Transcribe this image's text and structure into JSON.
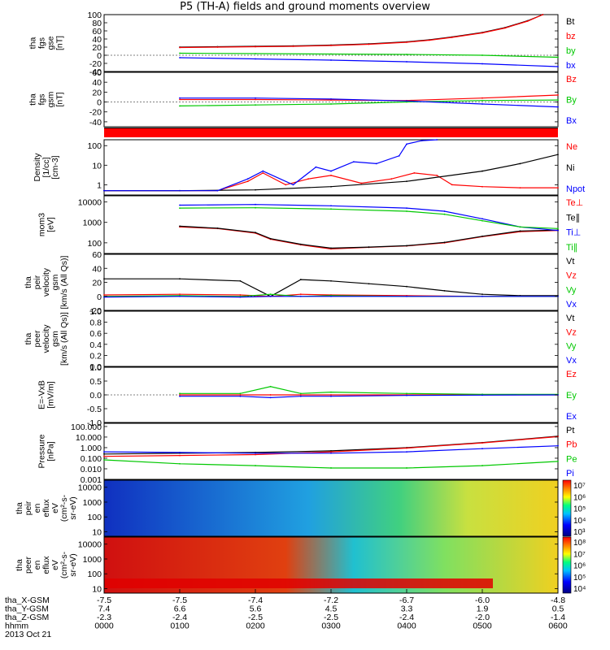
{
  "title": "P5 (TH-A) fields and ground moments overview",
  "x_ticks": [
    "0000",
    "0100",
    "0200",
    "0300",
    "0400",
    "0500",
    "0600"
  ],
  "time_rows": [
    {
      "label": "tha_X-GSM",
      "values": [
        "-7.5",
        "-7.5",
        "-7.4",
        "-7.2",
        "-6.7",
        "-6.0",
        "-4.8"
      ]
    },
    {
      "label": "tha_Y-GSM",
      "values": [
        "7.4",
        "6.6",
        "5.6",
        "4.5",
        "3.3",
        "1.9",
        "0.5"
      ]
    },
    {
      "label": "tha_Z-GSM",
      "values": [
        "-2.3",
        "-2.4",
        "-2.5",
        "-2.5",
        "-2.4",
        "-2.0",
        "-1.4"
      ]
    },
    {
      "label": "hhmm",
      "values": [
        "0000",
        "0100",
        "0200",
        "0300",
        "0400",
        "0500",
        "0600"
      ]
    }
  ],
  "date_label": "2013 Oct 21",
  "colors": {
    "black": "#000000",
    "red": "#ff0000",
    "green": "#00c800",
    "blue": "#0000ff"
  },
  "chart_data": [
    {
      "type": "line",
      "id": "fgs_gse",
      "ylabel": [
        "tha",
        "fgs",
        "gse",
        "[nT]"
      ],
      "ylim": [
        -40,
        100
      ],
      "yticks": [
        "-40",
        "-20",
        "0",
        "20",
        "40",
        "60",
        "80",
        "100"
      ],
      "legend": [
        {
          "name": "Bt",
          "color": "#000000"
        },
        {
          "name": "bz",
          "color": "#ff0000"
        },
        {
          "name": "by",
          "color": "#00c800"
        },
        {
          "name": "bx",
          "color": "#0000ff"
        }
      ],
      "series": [
        {
          "name": "Bt",
          "color": "#000000",
          "x": [
            1.0,
            1.5,
            2.0,
            2.5,
            3.0,
            3.5,
            4.0,
            4.3,
            4.6,
            5.0,
            5.3,
            5.6,
            5.8
          ],
          "y": [
            20,
            21,
            22,
            23,
            25,
            28,
            33,
            38,
            45,
            56,
            68,
            85,
            100
          ]
        },
        {
          "name": "bz",
          "color": "#ff0000",
          "x": [
            1.0,
            1.5,
            2.0,
            2.5,
            3.0,
            3.5,
            4.0,
            4.3,
            4.6,
            5.0,
            5.3,
            5.6,
            5.8
          ],
          "y": [
            19,
            20,
            21,
            22,
            24,
            27,
            32,
            37,
            44,
            55,
            67,
            84,
            100
          ]
        },
        {
          "name": "by",
          "color": "#00c800",
          "x": [
            1.0,
            2.0,
            3.0,
            4.0,
            5.0,
            6.0
          ],
          "y": [
            5,
            4,
            3,
            2,
            0,
            -5
          ]
        },
        {
          "name": "bx",
          "color": "#0000ff",
          "x": [
            1.0,
            2.0,
            3.0,
            4.0,
            5.0,
            6.0
          ],
          "y": [
            -6,
            -9,
            -12,
            -16,
            -21,
            -28
          ]
        }
      ]
    },
    {
      "type": "line",
      "id": "fgs_gsm",
      "ylabel": [
        "tha",
        "fgs",
        "gsm",
        "[nT]"
      ],
      "ylim": [
        -50,
        60
      ],
      "yticks": [
        "-40",
        "-20",
        "0",
        "20",
        "40",
        "60"
      ],
      "legend": [
        {
          "name": "Bz",
          "color": "#ff0000"
        },
        {
          "name": "By",
          "color": "#00c800"
        },
        {
          "name": "Bx",
          "color": "#0000ff"
        }
      ],
      "series": [
        {
          "name": "Bz",
          "color": "#ff0000",
          "x": [
            1.0,
            2.0,
            3.0,
            4.0,
            5.0,
            6.0
          ],
          "y": [
            5,
            5,
            4,
            3,
            8,
            14
          ]
        },
        {
          "name": "By",
          "color": "#00c800",
          "x": [
            1.0,
            2.0,
            3.0,
            4.0,
            5.0,
            6.0
          ],
          "y": [
            -8,
            -6,
            -4,
            0,
            3,
            4
          ]
        },
        {
          "name": "Bx",
          "color": "#0000ff",
          "x": [
            1.0,
            2.0,
            3.0,
            4.0,
            5.0,
            6.0
          ],
          "y": [
            8,
            8,
            6,
            2,
            -4,
            -10
          ]
        }
      ]
    },
    {
      "type": "line",
      "id": "density",
      "ylabel": [
        "Density",
        "[1/cc]",
        "[cm-3]"
      ],
      "ylim": [
        0.3,
        200
      ],
      "log": true,
      "yticks": [
        "1",
        "10",
        "100"
      ],
      "legend": [
        {
          "name": "Ne",
          "color": "#ff0000"
        },
        {
          "name": "Ni",
          "color": "#000000"
        },
        {
          "name": "Npot",
          "color": "#0000ff"
        }
      ],
      "series": [
        {
          "name": "Ne",
          "color": "#ff0000",
          "x": [
            0,
            1.5,
            1.9,
            2.1,
            2.4,
            2.7,
            3.0,
            3.4,
            3.8,
            4.1,
            4.4,
            4.6,
            5.0,
            5.5,
            6.0
          ],
          "y": [
            0.5,
            0.5,
            1.5,
            4,
            1,
            2,
            3,
            1.2,
            2,
            4,
            3,
            1,
            0.8,
            0.7,
            0.7
          ]
        },
        {
          "name": "Ni",
          "color": "#000000",
          "x": [
            0,
            1,
            2,
            3,
            4,
            5,
            5.5,
            6.0
          ],
          "y": [
            0.5,
            0.5,
            0.55,
            0.8,
            1.5,
            5,
            12,
            35
          ]
        },
        {
          "name": "Npot",
          "color": "#0000ff",
          "x": [
            0,
            1.5,
            1.9,
            2.1,
            2.5,
            2.8,
            3.0,
            3.3,
            3.6,
            3.9,
            4.0,
            4.2,
            4.4
          ],
          "y": [
            0.5,
            0.5,
            2,
            5,
            1,
            8,
            5,
            15,
            12,
            30,
            120,
            180,
            200
          ]
        }
      ]
    },
    {
      "type": "line",
      "id": "moms",
      "ylabel": [
        "mom3",
        "[eV]"
      ],
      "ylim": [
        30,
        20000
      ],
      "log": true,
      "yticks": [
        "100",
        "1000",
        "10000"
      ],
      "legend": [
        {
          "name": "Te⊥",
          "color": "#ff0000"
        },
        {
          "name": "Te∥",
          "color": "#000000"
        },
        {
          "name": "Ti⊥",
          "color": "#0000ff"
        },
        {
          "name": "Ti∥",
          "color": "#00c800"
        }
      ],
      "series": [
        {
          "name": "Te⊥",
          "color": "#ff0000",
          "x": [
            1.0,
            1.5,
            2.0,
            2.2,
            2.6,
            3.0,
            3.5,
            4.0,
            4.5,
            5.0,
            5.5,
            6.0
          ],
          "y": [
            600,
            500,
            300,
            150,
            80,
            50,
            60,
            70,
            100,
            200,
            350,
            400
          ]
        },
        {
          "name": "Te∥",
          "color": "#000000",
          "x": [
            1.0,
            1.5,
            2.0,
            2.2,
            2.6,
            3.0,
            3.5,
            4.0,
            4.5,
            5.0,
            5.5,
            6.0
          ],
          "y": [
            650,
            520,
            320,
            160,
            85,
            55,
            62,
            72,
            105,
            210,
            380,
            420
          ]
        },
        {
          "name": "Ti⊥",
          "color": "#0000ff",
          "x": [
            1.0,
            2.0,
            3.0,
            4.0,
            4.5,
            5.0,
            5.5,
            6.0
          ],
          "y": [
            7000,
            7500,
            6500,
            5000,
            3500,
            1500,
            600,
            400
          ]
        },
        {
          "name": "Ti∥",
          "color": "#00c800",
          "x": [
            1.0,
            2.0,
            3.0,
            4.0,
            4.5,
            5.0,
            5.5,
            6.0
          ],
          "y": [
            5000,
            5200,
            4500,
            3500,
            2500,
            1200,
            600,
            500
          ]
        }
      ]
    },
    {
      "type": "line",
      "id": "peir_v",
      "ylabel": [
        "tha",
        "peir",
        "velocity",
        "gsm",
        "[km/s (All Qs)]"
      ],
      "ylim": [
        -20,
        60
      ],
      "yticks": [
        "-20",
        "0",
        "20",
        "40",
        "60"
      ],
      "legend": [
        {
          "name": "Vt",
          "color": "#000000"
        },
        {
          "name": "Vz",
          "color": "#ff0000"
        },
        {
          "name": "Vy",
          "color": "#00c800"
        },
        {
          "name": "Vx",
          "color": "#0000ff"
        }
      ],
      "series": [
        {
          "name": "Vt",
          "color": "#000000",
          "x": [
            0,
            1.0,
            1.8,
            2.2,
            2.6,
            3.0,
            3.5,
            4.0,
            4.5,
            5.0,
            5.5,
            6.0
          ],
          "y": [
            25,
            25,
            22,
            0,
            24,
            22,
            18,
            14,
            8,
            3,
            1,
            1
          ]
        },
        {
          "name": "Vz",
          "color": "#ff0000",
          "x": [
            0,
            1.0,
            1.8,
            2.2,
            2.6,
            3.0,
            4.0,
            5.0,
            6.0
          ],
          "y": [
            2,
            3,
            2,
            0,
            3,
            2,
            1,
            0,
            0
          ]
        },
        {
          "name": "Vy",
          "color": "#00c800",
          "x": [
            0,
            1.0,
            1.8,
            2.2,
            2.6,
            3.0,
            4.0,
            5.0,
            6.0
          ],
          "y": [
            0,
            1,
            0,
            3,
            0,
            1,
            0,
            0,
            0
          ]
        },
        {
          "name": "Vx",
          "color": "#0000ff",
          "x": [
            0,
            1.0,
            1.8,
            2.2,
            2.6,
            3.0,
            4.0,
            5.0,
            6.0
          ],
          "y": [
            -1,
            0,
            -1,
            0,
            0,
            0,
            0,
            0,
            0
          ]
        }
      ]
    },
    {
      "type": "line",
      "id": "peer_v",
      "ylabel": [
        "tha",
        "peer",
        "velocity",
        "gsm",
        "[km/s (All Qs)]"
      ],
      "ylim": [
        0,
        1
      ],
      "yticks": [
        "0.0",
        "0.2",
        "0.4",
        "0.6",
        "0.8",
        "1.0"
      ],
      "legend": [
        {
          "name": "Vt",
          "color": "#000000"
        },
        {
          "name": "Vz",
          "color": "#ff0000"
        },
        {
          "name": "Vy",
          "color": "#00c800"
        },
        {
          "name": "Vx",
          "color": "#0000ff"
        }
      ],
      "series": []
    },
    {
      "type": "line",
      "id": "efield",
      "ylabel": [
        "E=-VxB",
        "[mV/m]"
      ],
      "ylim": [
        -1,
        1
      ],
      "yticks": [
        "-1.0",
        "-0.5",
        "0.0",
        "0.5",
        "1.0"
      ],
      "legend": [
        {
          "name": "Ez",
          "color": "#ff0000"
        },
        {
          "name": "Ey",
          "color": "#00c800"
        },
        {
          "name": "Ex",
          "color": "#0000ff"
        }
      ],
      "series": [
        {
          "name": "Ez",
          "color": "#ff0000",
          "x": [
            1.0,
            1.8,
            2.2,
            2.6,
            3.0,
            4.0,
            5.0,
            6.0
          ],
          "y": [
            0,
            0,
            0,
            0,
            0,
            0,
            0,
            0
          ]
        },
        {
          "name": "Ey",
          "color": "#00c800",
          "x": [
            1.0,
            1.8,
            2.2,
            2.6,
            3.0,
            4.0,
            5.0,
            6.0
          ],
          "y": [
            0.05,
            0.05,
            0.3,
            0.05,
            0.1,
            0.05,
            0.02,
            0.02
          ]
        },
        {
          "name": "Ex",
          "color": "#0000ff",
          "x": [
            1.0,
            1.8,
            2.2,
            2.6,
            3.0,
            4.0,
            5.0,
            6.0
          ],
          "y": [
            -0.05,
            -0.05,
            -0.1,
            -0.05,
            -0.05,
            -0.02,
            -0.01,
            0
          ]
        }
      ]
    },
    {
      "type": "line",
      "id": "pressure",
      "ylabel": [
        "Pressure",
        "[nPa]"
      ],
      "ylim": [
        0.001,
        200
      ],
      "log": true,
      "yticks": [
        "0.001",
        "0.010",
        "0.100",
        "1.000",
        "10.000",
        "100.000"
      ],
      "legend": [
        {
          "name": "Pt",
          "color": "#000000"
        },
        {
          "name": "Pb",
          "color": "#ff0000"
        },
        {
          "name": "Pe",
          "color": "#00c800"
        },
        {
          "name": "Pi",
          "color": "#0000ff"
        }
      ],
      "series": [
        {
          "name": "Pt",
          "color": "#000000",
          "x": [
            0,
            1,
            2,
            3,
            4,
            5,
            6
          ],
          "y": [
            0.25,
            0.3,
            0.35,
            0.5,
            1,
            3,
            12
          ]
        },
        {
          "name": "Pb",
          "color": "#ff0000",
          "x": [
            0,
            1,
            2,
            3,
            4,
            5,
            6
          ],
          "y": [
            0.15,
            0.18,
            0.22,
            0.4,
            0.9,
            2.8,
            11
          ]
        },
        {
          "name": "Pe",
          "color": "#00c800",
          "x": [
            0,
            1,
            2,
            3,
            4,
            5,
            6
          ],
          "y": [
            0.07,
            0.03,
            0.02,
            0.012,
            0.012,
            0.02,
            0.05
          ]
        },
        {
          "name": "Pi",
          "color": "#0000ff",
          "x": [
            0,
            1,
            2,
            3,
            4,
            5,
            6
          ],
          "y": [
            0.4,
            0.35,
            0.3,
            0.3,
            0.4,
            0.8,
            1.5
          ]
        }
      ]
    },
    {
      "type": "heatmap",
      "id": "peir_spec",
      "ylabel": [
        "tha",
        "peir",
        "en",
        "eflux",
        "eV",
        "(cm^2-s-",
        "sr-eV)"
      ],
      "ylim": [
        5,
        30000
      ],
      "log": true,
      "yticks": [
        "10",
        "100",
        "1000",
        "10000"
      ],
      "colorbar_labels": [
        "10^3",
        "10^4",
        "10^5",
        "10^6",
        "10^7"
      ],
      "clim": [
        3,
        7.3
      ]
    },
    {
      "type": "heatmap",
      "id": "peer_spec",
      "ylabel": [
        "tha",
        "peer",
        "en",
        "eflux",
        "eV",
        "(cm^2-s-",
        "sr-eV)"
      ],
      "ylim": [
        5,
        30000
      ],
      "log": true,
      "yticks": [
        "10",
        "100",
        "1000",
        "10000"
      ],
      "colorbar_labels": [
        "10^4",
        "10^5",
        "10^6",
        "10^7",
        "10^8"
      ],
      "clim": [
        3.6,
        8.3
      ]
    }
  ]
}
